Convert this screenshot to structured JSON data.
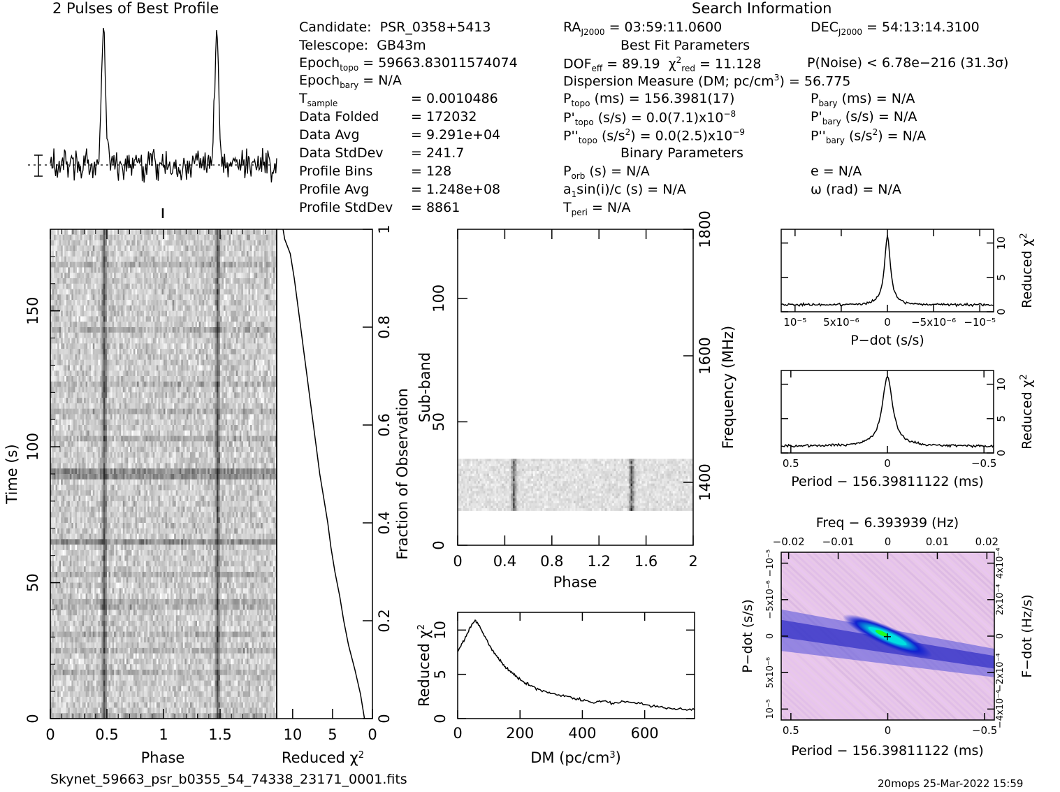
{
  "header": {
    "profile_title": "2 Pulses of Best Profile",
    "search_title": "Search Information",
    "filename": "Skynet_59663_psr_b0355_54_74338_23171_0001.fits",
    "footer_right": "20mops 25-Mar-2022 15:59"
  },
  "info": {
    "left": [
      {
        "label": "Candidate:",
        "value": "PSR_0358+5413"
      },
      {
        "label": "Telescope:",
        "value": "GB43m"
      },
      {
        "label": "Epoch",
        "sub": "topo",
        "value": "= 59663.83011574074"
      },
      {
        "label": "Epoch",
        "sub": "bary",
        "value": "= N/A"
      },
      {
        "label": "T",
        "sub": "sample",
        "value": "=   0.0010486"
      },
      {
        "label": "Data Folded",
        "value": "=   172032"
      },
      {
        "label": "Data Avg",
        "value": "=   9.291e+04"
      },
      {
        "label": "Data StdDev",
        "value": "=   241.7"
      },
      {
        "label": "Profile Bins",
        "value": "=   128"
      },
      {
        "label": "Profile Avg",
        "value": "=   1.248e+08"
      },
      {
        "label": "Profile StdDev",
        "value": "=   8861"
      }
    ],
    "ra_label": "RA",
    "ra_sub": "J2000",
    "ra_value": "= 03:59:11.0600",
    "dec_label": "DEC",
    "dec_sub": "J2000",
    "dec_value": "= 54:13:14.3100",
    "best_fit_title": "Best Fit Parameters",
    "dof_label": "DOF",
    "dof_sub": "eff",
    "dof_value": "= 89.19",
    "chi_label": "χ",
    "chi_sup": "2",
    "chi_sub": "red",
    "chi_value": "= 11.128",
    "pnoise": "P(Noise) < 6.78e−216   (31.3σ)",
    "dm_text": "Dispersion Measure (DM; pc/cm",
    "dm_sup": "3",
    "dm_value": ") = 56.775",
    "ptopo": "P",
    "ptopo_sub": "topo",
    "ptopo_value": "(ms) =   156.3981(17)",
    "pbary": "P",
    "pbary_sub": "bary",
    "pbary_value": "(ms) = N/A",
    "pdtopo": "P'",
    "pdtopo_sub": "topo",
    "pdtopo_value": "(s/s) = 0.0(7.1)x10",
    "pdtopo_exp": "−8",
    "pdbary": "P'",
    "pdbary_sub": "bary",
    "pdbary_value": "(s/s) = N/A",
    "pddtopo": "P''",
    "pddtopo_sub": "topo",
    "pddtopo_value": "(s/s",
    "pddtopo_value2": ") = 0.0(2.5)x10",
    "pddtopo_exp": "−9",
    "pddbary": "P''",
    "pddbary_sub": "bary",
    "pddbary_value": "(s/s",
    "pddbary_value2": ") = N/A",
    "binary_title": "Binary Parameters",
    "porb": "P",
    "porb_sub": "orb",
    "porb_value": "(s) = N/A",
    "e_value": "e = N/A",
    "a1_pre": "a",
    "a1_sub": "1",
    "a1_value": "sin(i)/c (s) = N/A",
    "omega_value": "ω (rad) = N/A",
    "tperi": "T",
    "tperi_sub": "peri",
    "tperi_value": "= N/A"
  },
  "chart_data": [
    {
      "type": "line",
      "title": "2 Pulses of Best Profile",
      "x_range": [
        0,
        2
      ],
      "peaks_at_phase": [
        0.47,
        1.47
      ],
      "description_values": "pulse profile repeated twice"
    },
    {
      "type": "heatmap",
      "xlabel": "Phase",
      "ylabel": "Time (s)",
      "xlim": [
        0,
        2
      ],
      "ylim": [
        0,
        180
      ],
      "xticks": [
        "0",
        "0.5",
        "1",
        "1.5"
      ],
      "yticks": [
        "0",
        "50",
        "100",
        "150"
      ]
    },
    {
      "type": "line",
      "xlabel": "Reduced χ2",
      "xlabel_base": "Reduced χ",
      "xlabel_sup": "2",
      "ylabel": "Fraction of Observation",
      "xticks": [
        "10",
        "5",
        "0"
      ],
      "yticks": [
        "0",
        "0.2",
        "0.4",
        "0.6",
        "0.8",
        "1"
      ],
      "points": [
        [
          1,
          0
        ],
        [
          1.5,
          0.05
        ],
        [
          2.2,
          0.1
        ],
        [
          3,
          0.15
        ],
        [
          3.6,
          0.2
        ],
        [
          4.1,
          0.25
        ],
        [
          4.7,
          0.3
        ],
        [
          5.2,
          0.35
        ],
        [
          5.6,
          0.4
        ],
        [
          6.1,
          0.45
        ],
        [
          6.6,
          0.5
        ],
        [
          7.0,
          0.55
        ],
        [
          7.4,
          0.6
        ],
        [
          7.8,
          0.65
        ],
        [
          8.2,
          0.7
        ],
        [
          8.6,
          0.75
        ],
        [
          9.0,
          0.8
        ],
        [
          9.4,
          0.85
        ],
        [
          9.8,
          0.9
        ],
        [
          10.3,
          0.95
        ],
        [
          11.0,
          0.98
        ],
        [
          11.2,
          1.0
        ]
      ]
    },
    {
      "type": "heatmap",
      "xlabel": "Phase",
      "ylabel": "Sub-band",
      "ylabel_right": "Frequency (MHz)",
      "xticks": [
        "0",
        "0.4",
        "0.8",
        "1.2",
        "1.6",
        "2"
      ],
      "yticks": [
        "0",
        "50",
        "100"
      ],
      "yticks_right": [
        "1400",
        "1600",
        "1800"
      ],
      "xlim": [
        0,
        2
      ],
      "ylim": [
        0,
        128
      ],
      "band_range": [
        14,
        35
      ]
    },
    {
      "type": "line",
      "xlabel": "DM (pc/cm3)",
      "xlabel_base": "DM (pc/cm",
      "xlabel_sup": "3",
      "xlabel_end": ")",
      "ylabel": "Reduced χ2",
      "ylabel_base": "Reduced χ",
      "ylabel_sup": "2",
      "xticks": [
        "0",
        "200",
        "400",
        "600"
      ],
      "yticks": [
        "0",
        "5",
        "10"
      ],
      "xlim": [
        0,
        760
      ],
      "ylim": [
        0,
        12
      ],
      "points": [
        [
          0,
          7.5
        ],
        [
          20,
          8.8
        ],
        [
          40,
          10.2
        ],
        [
          56,
          11.1
        ],
        [
          70,
          10.5
        ],
        [
          90,
          9.0
        ],
        [
          110,
          7.8
        ],
        [
          130,
          6.8
        ],
        [
          150,
          6.0
        ],
        [
          170,
          5.3
        ],
        [
          190,
          4.7
        ],
        [
          210,
          4.2
        ],
        [
          230,
          3.8
        ],
        [
          260,
          3.3
        ],
        [
          290,
          3.0
        ],
        [
          320,
          2.7
        ],
        [
          350,
          2.5
        ],
        [
          380,
          2.2
        ],
        [
          410,
          2.0
        ],
        [
          440,
          1.8
        ],
        [
          470,
          2.0
        ],
        [
          500,
          1.7
        ],
        [
          530,
          1.9
        ],
        [
          560,
          1.8
        ],
        [
          600,
          1.6
        ],
        [
          640,
          1.4
        ],
        [
          680,
          1.2
        ],
        [
          720,
          1.1
        ],
        [
          760,
          1.0
        ]
      ]
    },
    {
      "type": "line",
      "xlabel": "P−dot (s/s)",
      "ylabel": "Reduced χ2",
      "ylabel_base": "Reduced χ",
      "ylabel_sup": "2",
      "xticks": [
        "10⁻⁵",
        "5x10⁻⁶",
        "0",
        "−5x10⁻⁶",
        "−10⁻⁵"
      ],
      "yticks": [
        "0",
        "5",
        "10"
      ],
      "peak_value": 11.1
    },
    {
      "type": "line",
      "xlabel": "Period − 156.39811122 (ms)",
      "ylabel": "Reduced χ2",
      "ylabel_base": "Reduced χ",
      "ylabel_sup": "2",
      "xticks": [
        "0.5",
        "0",
        "−0.5"
      ],
      "yticks": [
        "0",
        "5",
        "10"
      ],
      "peak_value": 11.1
    },
    {
      "type": "heatmap",
      "title": "Freq − 6.393939 (Hz)",
      "xlabel": "Period − 156.39811122 (ms)",
      "ylabel": "P−dot (s/s)",
      "ylabel_right": "F−dot (Hz/s)",
      "xticks": [
        "0.5",
        "0",
        "−0.5"
      ],
      "xticks_top": [
        "−0.02",
        "−0.01",
        "0",
        "0.01",
        "0.02"
      ],
      "yticks": [
        "10⁻⁵",
        "5x10⁻⁶",
        "0",
        "−5x10⁻⁶",
        "−10⁻⁵"
      ],
      "yticks_right": [
        "−4x10⁻⁴",
        "−2x10⁻⁴",
        "0",
        "2x10⁻⁴",
        "4x10⁻⁴"
      ]
    }
  ],
  "colors": {
    "axis": "#000000",
    "heat_bg": "#e8c8e8",
    "heat_blue": "#2020c0",
    "heat_cyan": "#00e0e0",
    "heat_green": "#20ff20"
  }
}
